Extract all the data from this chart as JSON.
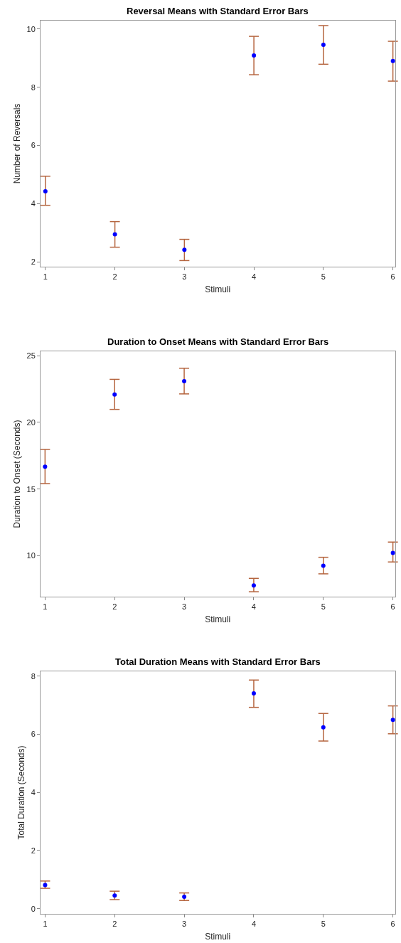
{
  "chart_data": [
    {
      "type": "scatter",
      "title": "Reversal Means with Standard Error Bars",
      "xlabel": "Stimuli",
      "ylabel": "Number of Reversals",
      "x": [
        1,
        2,
        3,
        4,
        5,
        6
      ],
      "xlim": [
        0.93,
        6.03
      ],
      "xticks": [
        1,
        2,
        3,
        4,
        5,
        6
      ],
      "ylim": [
        1.83,
        10.29
      ],
      "yticks": [
        2,
        4,
        6,
        8,
        10
      ],
      "marker": "circle",
      "series": [
        {
          "color": "#0000ff",
          "values": [
            4.42,
            2.94,
            2.41,
            9.09,
            9.46,
            8.9
          ],
          "errors": [
            [
              3.94,
              4.94
            ],
            [
              2.5,
              3.38
            ],
            [
              2.04,
              2.77
            ],
            [
              8.43,
              9.75
            ],
            [
              8.79,
              10.12
            ],
            [
              8.21,
              9.58
            ]
          ]
        }
      ]
    },
    {
      "type": "scatter",
      "title": "Duration to Onset Means with Standard Error Bars",
      "xlabel": "Stimuli",
      "ylabel": "Duration to Onset (Seconds)",
      "x": [
        1,
        2,
        3,
        4,
        5,
        6
      ],
      "xlim": [
        0.935,
        6.03
      ],
      "xticks": [
        1,
        2,
        3,
        4,
        5,
        6
      ],
      "ylim": [
        6.94,
        25.32
      ],
      "yticks": [
        10,
        15,
        20,
        25
      ],
      "marker": "circle",
      "series": [
        {
          "color": "#0000ff",
          "values": [
            16.68,
            22.08,
            23.08,
            7.78,
            9.26,
            10.21
          ],
          "errors": [
            [
              15.41,
              17.97
            ],
            [
              20.97,
              23.22
            ],
            [
              22.13,
              24.05
            ],
            [
              7.31,
              8.31
            ],
            [
              8.65,
              9.89
            ],
            [
              9.54,
              11.03
            ]
          ]
        }
      ]
    },
    {
      "type": "scatter",
      "title": "Total Duration Means with Standard Error Bars",
      "xlabel": "Stimuli",
      "ylabel": "Total Duration (Seconds)",
      "x": [
        1,
        2,
        3,
        4,
        5,
        6
      ],
      "xlim": [
        0.934,
        6.03
      ],
      "xticks": [
        1,
        2,
        3,
        4,
        5,
        6
      ],
      "ylim": [
        -0.18,
        8.17
      ],
      "yticks": [
        0,
        2,
        4,
        6,
        8
      ],
      "marker": "circle",
      "series": [
        {
          "color": "#0000ff",
          "values": [
            0.81,
            0.45,
            0.41,
            7.41,
            6.24,
            6.5
          ],
          "errors": [
            [
              0.7,
              0.95
            ],
            [
              0.31,
              0.6
            ],
            [
              0.28,
              0.54
            ],
            [
              6.93,
              7.87
            ],
            [
              5.77,
              6.72
            ],
            [
              6.02,
              6.98
            ]
          ]
        }
      ]
    }
  ]
}
